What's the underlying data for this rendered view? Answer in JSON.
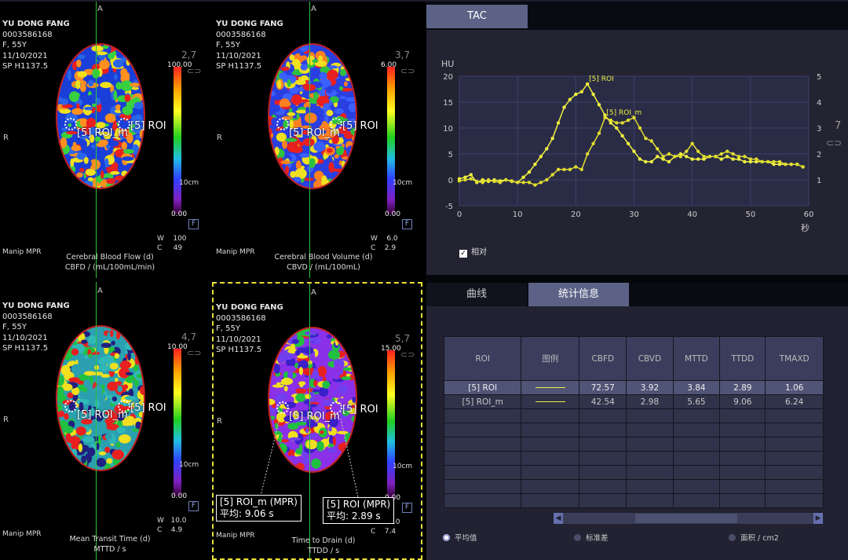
{
  "patient": {
    "name": "YU DONG FANG",
    "id": "0003586168",
    "sex_age": "F, 55Y",
    "date": "11/10/2021",
    "scan": "SP H1137.5"
  },
  "orientation": {
    "top": "A",
    "left": "R"
  },
  "common": {
    "manip": "Manip MPR",
    "cm_label": "10cm",
    "f_label": "F",
    "roi_label": "[5] ROI",
    "roi_m_label": "[5] ROI_m"
  },
  "viewports": [
    {
      "map_title": "Cerebral Blood Flow (d)",
      "map_unit": "CBFD / (mL/100mL/min)",
      "scale_max": "100.00",
      "scale_min": "0.00",
      "corner_num": "2,7",
      "wc": "W    100\nC     49",
      "colormap": "rainbow"
    },
    {
      "map_title": "Cerebral Blood Volume (d)",
      "map_unit": "CBVD / (mL/100mL)",
      "scale_max": "6.00",
      "scale_min": "0.00",
      "corner_num": "3,7",
      "wc": "W    6.0\nC    2.9",
      "colormap": "rainbow"
    },
    {
      "map_title": "Mean Transit Time (d)",
      "map_unit": "MTTD / s",
      "scale_max": "10.00",
      "scale_min": "0.00",
      "corner_num": "4,7",
      "wc": "W   10.0\nC    4.9",
      "colormap": "rainbow"
    },
    {
      "map_title": "Time to Drain (d)",
      "map_unit": "TTDD / s",
      "scale_max": "15.00",
      "scale_min": "0.00",
      "corner_num": "5,7",
      "wc": "W   15.0\nC    7.4",
      "colormap": "rainbow"
    }
  ],
  "callouts": {
    "roi_m": {
      "title": "[5] ROI_m (MPR)",
      "value": "平均: 9.06 s"
    },
    "roi": {
      "title": "[5] ROI (MPR)",
      "value": "平均: 2.89 s"
    }
  },
  "tac": {
    "tab": "TAC",
    "ylabel": "HU",
    "xlabel": "秒",
    "right_num": "7",
    "relative_label": "相对"
  },
  "chart_data": {
    "type": "line",
    "x": [
      0,
      1,
      2,
      3,
      4,
      5,
      6,
      7,
      8,
      9,
      10,
      11,
      12,
      13,
      14,
      15,
      16,
      17,
      18,
      19,
      20,
      21,
      22,
      23,
      24,
      25,
      26,
      27,
      28,
      29,
      30,
      31,
      32,
      33,
      34,
      35,
      36,
      37,
      38,
      39,
      40,
      41,
      42,
      43,
      44,
      45,
      46,
      47,
      48,
      49,
      50,
      51,
      52,
      53,
      54,
      55,
      56,
      57,
      58,
      59
    ],
    "series": [
      {
        "name": "[5] ROI",
        "values": [
          0.2,
          0.5,
          1.0,
          -0.5,
          0,
          -0.3,
          0,
          -0.2,
          0,
          -0.3,
          -0.5,
          0.5,
          1.5,
          3,
          4.5,
          6,
          8,
          11,
          14,
          15.5,
          16.5,
          17,
          18.5,
          16.5,
          14.5,
          12.5,
          11,
          10,
          8.5,
          7,
          5.5,
          4,
          3.5,
          3.5,
          4.5,
          4,
          3.5,
          4.5,
          5,
          4.5,
          4,
          4,
          4,
          4.5,
          4.5,
          4,
          4.5,
          4,
          4,
          3.5,
          3.5,
          3.5,
          3.5,
          3.5,
          3,
          3,
          3,
          3,
          3,
          2.5
        ],
        "color": "#f0f040"
      },
      {
        "name": "[5] ROI_m",
        "values": [
          -0.2,
          0,
          0.2,
          -0.3,
          -0.5,
          0,
          -0.3,
          -0.5,
          0,
          -0.2,
          -0.5,
          -0.5,
          -0.5,
          -1,
          -0.5,
          0,
          1,
          2,
          2,
          2,
          2.5,
          2,
          5,
          7,
          9,
          12,
          11.5,
          11,
          11,
          11.5,
          12,
          10,
          8,
          7.5,
          6,
          4.5,
          5,
          4.5,
          4.5,
          5.5,
          7,
          5.5,
          4.5,
          4.5,
          4.5,
          5,
          5.5,
          5,
          4.5,
          4.5,
          4,
          4,
          3.5,
          3.5,
          3.5,
          3.5,
          3,
          3,
          3,
          2.5
        ],
        "color": "#e0dc30"
      }
    ],
    "xlim": [
      0,
      60
    ],
    "ylim": [
      -5,
      20
    ],
    "y2lim": [
      0,
      5
    ],
    "xticks": [
      0,
      10,
      20,
      30,
      40,
      50,
      60
    ],
    "yticks": [
      -5,
      0,
      5,
      10,
      15,
      20
    ],
    "y2ticks": [
      1,
      2,
      3,
      4,
      5
    ],
    "xlabel": "秒",
    "ylabel": "HU",
    "grid": true
  },
  "stats": {
    "tabs": [
      "曲线",
      "统计信息"
    ],
    "active_tab": 1,
    "headers": [
      "ROI",
      "图例",
      "CBFD",
      "CBVD",
      "MTTD",
      "TTDD",
      "TMAXD"
    ],
    "rows": [
      {
        "roi": "[5] ROI",
        "cbfd": "72.57",
        "cbvd": "3.92",
        "mttd": "3.84",
        "ttdd": "2.89",
        "tmaxd": "1.06",
        "legend_color": "#f0f040"
      },
      {
        "roi": "[5] ROI_m",
        "cbfd": "42.54",
        "cbvd": "2.98",
        "mttd": "5.65",
        "ttdd": "9.06",
        "tmaxd": "6.24",
        "legend_color": "#f0f040"
      }
    ],
    "radios": [
      "平均值",
      "标准差",
      "面积 / cm2"
    ],
    "radio_selected": 0
  }
}
